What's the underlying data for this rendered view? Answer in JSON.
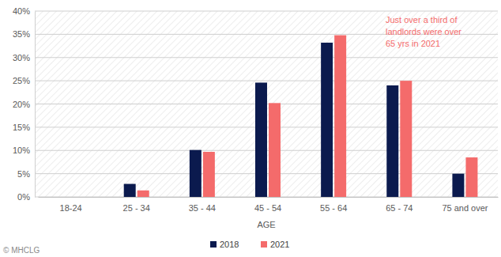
{
  "chart_data": {
    "type": "bar",
    "x_label": "AGE",
    "categories": [
      "18-24",
      "25 - 34",
      "35 - 44",
      "45 - 54",
      "55 - 64",
      "65 - 74",
      "75 and over"
    ],
    "series": [
      {
        "name": "2018",
        "color": "#0b1a4e",
        "values": [
          0,
          2.8,
          10.1,
          24.6,
          33.2,
          24.0,
          5.0
        ]
      },
      {
        "name": "2021",
        "color": "#f46b6b",
        "values": [
          0,
          1.4,
          9.7,
          20.2,
          34.8,
          25.0,
          8.5
        ]
      }
    ],
    "ylim": [
      0,
      40
    ],
    "yticks": [
      {
        "value": 0,
        "label": "0%"
      },
      {
        "value": 5,
        "label": "5%"
      },
      {
        "value": 10,
        "label": "10%"
      },
      {
        "value": 15,
        "label": "15%"
      },
      {
        "value": 20,
        "label": "20%"
      },
      {
        "value": 25,
        "label": "25%"
      },
      {
        "value": 30,
        "label": "30%"
      },
      {
        "value": 35,
        "label": "35%"
      },
      {
        "value": 40,
        "label": "40%"
      }
    ],
    "annotation": [
      "Just over a third of",
      "landlords were over",
      "65 yrs in 2021"
    ],
    "source": "© MHCLG",
    "grid": true,
    "legend": "bottom"
  }
}
